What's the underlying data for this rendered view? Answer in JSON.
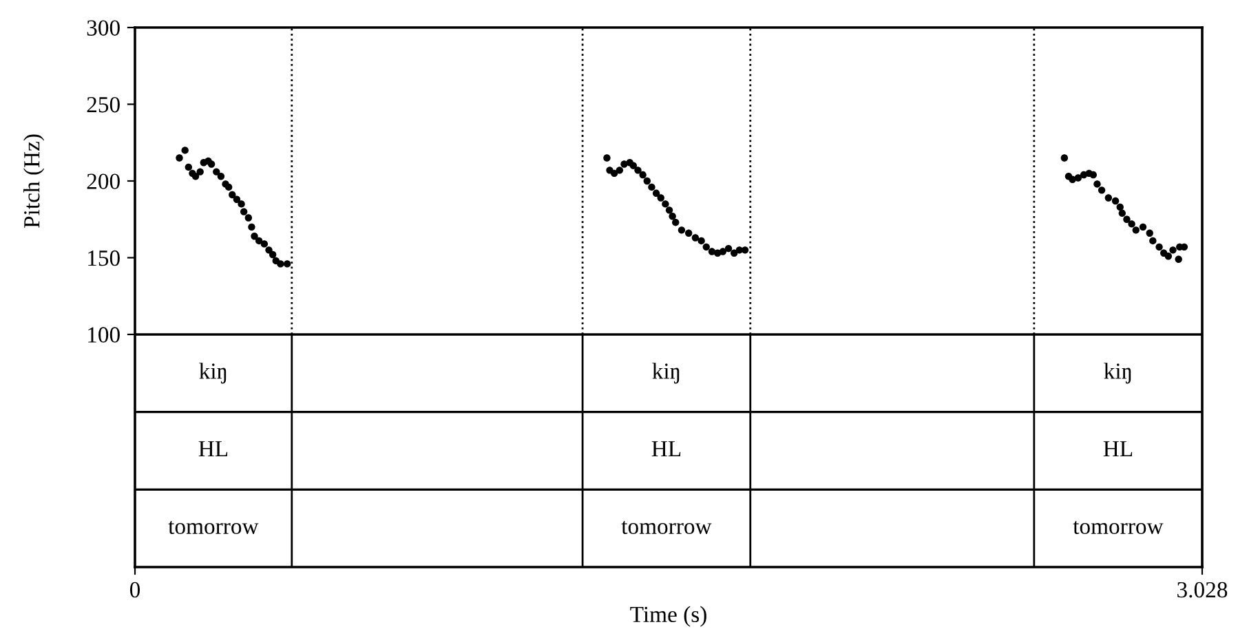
{
  "chart_data": {
    "type": "scatter",
    "ylabel": "Pitch (Hz)",
    "xlabel": "Time (s)",
    "xlim": [
      0,
      3.028
    ],
    "xticks": [
      0,
      3.028
    ],
    "ylim": [
      -51.6,
      300
    ],
    "yticks": [
      100,
      150,
      200,
      250,
      300
    ],
    "marker": "circle",
    "ref_lines": [
      {
        "axis": "x",
        "value": 0.445,
        "line_style": "dotted"
      },
      {
        "axis": "x",
        "value": 1.27,
        "line_style": "dotted"
      },
      {
        "axis": "x",
        "value": 1.746,
        "line_style": "dotted"
      },
      {
        "axis": "x",
        "value": 2.551,
        "line_style": "dotted"
      },
      {
        "axis": "y",
        "value": 100
      },
      {
        "axis": "y",
        "value": 49.5
      },
      {
        "axis": "y",
        "value": -1.1
      }
    ],
    "series": [
      {
        "color": "#000000",
        "x": [
          0.126,
          0.142,
          0.152,
          0.163,
          0.172,
          0.185,
          0.195,
          0.208,
          0.217,
          0.231,
          0.244,
          0.257,
          0.266,
          0.276,
          0.289,
          0.302,
          0.309,
          0.322,
          0.331,
          0.339,
          0.352,
          0.367,
          0.38,
          0.391,
          0.4,
          0.413,
          0.432
        ],
        "values": [
          215,
          220,
          209,
          205,
          203,
          206,
          212,
          213,
          211,
          206,
          203,
          198,
          196,
          191,
          188,
          185,
          180,
          176,
          170,
          164,
          161,
          159,
          155,
          152,
          148,
          146,
          146
        ]
      },
      {
        "color": "#000000",
        "x": [
          1.339,
          1.347,
          1.36,
          1.375,
          1.388,
          1.404,
          1.414,
          1.427,
          1.441,
          1.453,
          1.466,
          1.479,
          1.492,
          1.505,
          1.516,
          1.525,
          1.534,
          1.551,
          1.571,
          1.59,
          1.607,
          1.621,
          1.637,
          1.653,
          1.668,
          1.684,
          1.7,
          1.715,
          1.731
        ],
        "values": [
          215,
          207,
          205,
          207,
          211,
          212,
          210,
          207,
          204,
          200,
          196,
          192,
          189,
          185,
          181,
          177,
          173,
          168,
          166,
          163,
          161,
          157,
          154,
          153,
          154,
          156,
          153,
          155,
          155
        ]
      },
      {
        "color": "#000000",
        "x": [
          2.637,
          2.649,
          2.66,
          2.676,
          2.692,
          2.707,
          2.719,
          2.73,
          2.743,
          2.762,
          2.782,
          2.795,
          2.801,
          2.814,
          2.828,
          2.84,
          2.86,
          2.879,
          2.888,
          2.906,
          2.919,
          2.932,
          2.945,
          2.961,
          2.964,
          2.977
        ],
        "values": [
          215,
          203,
          201,
          202,
          204,
          205,
          204,
          198,
          194,
          189,
          187,
          183,
          179,
          175,
          172,
          168,
          170,
          166,
          161,
          157,
          153,
          151,
          155,
          149,
          157,
          157
        ]
      }
    ],
    "annotations": [
      "kiŋ",
      "kiŋ",
      "kiŋ",
      "HL",
      "HL",
      "HL",
      "tomorrow",
      "tomorrow",
      "tomorrow"
    ]
  }
}
